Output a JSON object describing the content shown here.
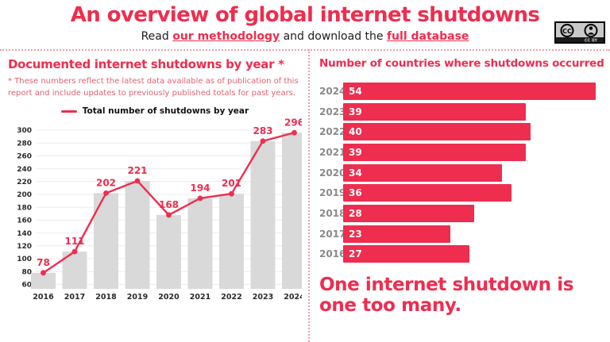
{
  "header": {
    "title": "An overview of global internet shutdowns",
    "subtitle": {
      "prefix": "Read ",
      "link_methodology": "our methodology",
      "middle": " and download the ",
      "link_database": "full database"
    },
    "cc_badge": {
      "label": "CC BY"
    }
  },
  "left_panel": {
    "note": "* These numbers reflect the latest data available as of publication of this report and include updates to previously published totals for past years."
  },
  "right_panel": {
    "tagline": "One internet shutdown is one too many."
  },
  "colors": {
    "accent_red": "#ee2d4f",
    "note_red": "#e06273",
    "bar_gray": "#d9d9d9",
    "year_label_gray": "#8a8a8a",
    "divider_red": "#e7a2ae"
  },
  "chart_data": [
    {
      "type": "bar+line",
      "title": "Documented internet shutdowns by year *",
      "series_label": "Total number of shutdowns by year",
      "categories": [
        "2016",
        "2017",
        "2018",
        "2019",
        "2020",
        "2021",
        "2022",
        "2023",
        "2024"
      ],
      "values": [
        78,
        111,
        202,
        221,
        168,
        194,
        201,
        283,
        296
      ],
      "yticks": [
        60,
        80,
        100,
        120,
        140,
        160,
        180,
        200,
        220,
        240,
        260,
        280,
        300
      ],
      "ylim": [
        53,
        305
      ],
      "grid": true,
      "legend_position": "top",
      "bar_color": "#d9d9d9",
      "line_color": "#ee2d4f"
    },
    {
      "type": "bar",
      "orientation": "horizontal",
      "title": "Number of countries where shutdowns occurred",
      "categories": [
        "2024",
        "2023",
        "2022",
        "2021",
        "2020",
        "2019",
        "2018",
        "2017",
        "2016"
      ],
      "values": [
        54,
        39,
        40,
        39,
        34,
        36,
        28,
        23,
        27
      ],
      "xlim": [
        0,
        54
      ],
      "grid": false,
      "bar_color": "#ee2d4f"
    }
  ]
}
